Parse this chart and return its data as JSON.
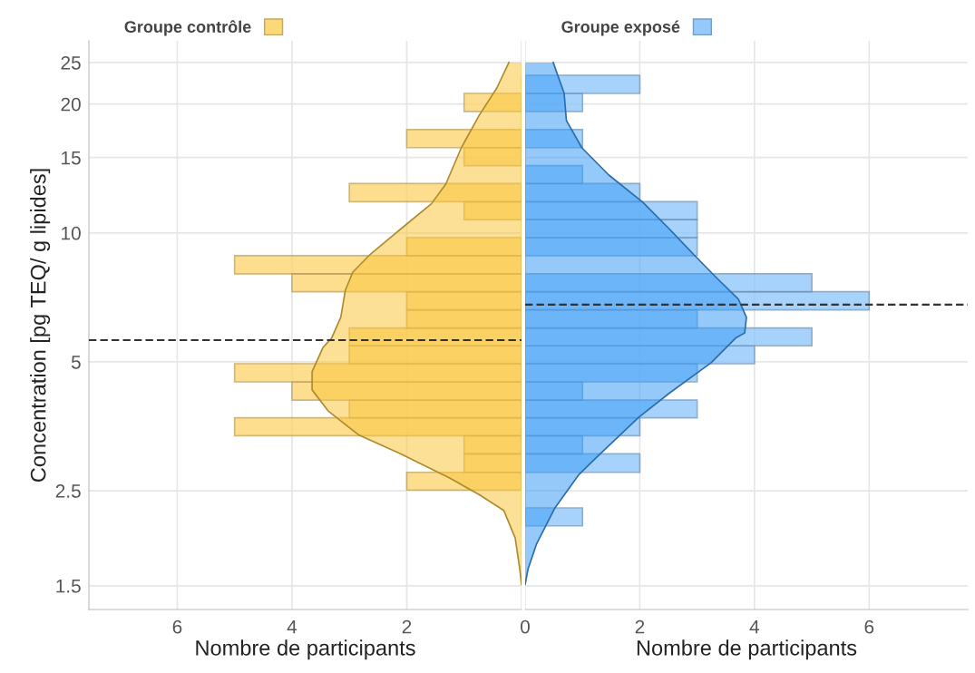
{
  "chart_data": [
    {
      "type": "histogram",
      "orientation": "horizontal",
      "log": "y",
      "ylabel": "Concentration [pg TEQ/ g lipides]",
      "xlabel": "Nombre de participants",
      "bins": [
        2.07,
        2.28,
        2.51,
        2.76,
        3.05,
        3.36,
        3.7,
        4.07,
        4.49,
        4.95,
        5.45,
        6.0,
        6.61,
        7.29,
        8.03,
        8.85,
        9.75,
        10.74,
        11.83,
        13.04,
        14.36,
        15.82,
        17.43,
        19.21,
        21.17,
        23.32
      ],
      "series": [
        {
          "name": "Groupe contrôle",
          "color": "#fdd46a",
          "values": [
            0,
            0,
            2,
            1,
            1,
            5,
            3,
            4,
            5,
            3,
            3,
            2,
            2,
            4,
            5,
            2,
            0,
            1,
            3,
            0,
            1,
            2,
            0,
            1,
            0
          ]
        },
        {
          "type": "area",
          "color": "#f9c640",
          "x": [
            1.51,
            1.64,
            1.94,
            2.25,
            2.45,
            2.68,
            3.05,
            3.37,
            3.84,
            4.3,
            4.74,
            5.4,
            5.68,
            6.35,
            7.35,
            8.1,
            8.93,
            10.2,
            11.7,
            13.0,
            15.8,
            18.8,
            21.8,
            25.0
          ],
          "values": [
            0,
            0.03,
            0.11,
            0.31,
            0.74,
            1.26,
            2.11,
            2.83,
            3.37,
            3.65,
            3.65,
            3.46,
            3.31,
            3.15,
            3.07,
            2.94,
            2.63,
            2.11,
            1.57,
            1.32,
            1.05,
            0.74,
            0.43,
            0.22
          ]
        }
      ],
      "xlim": [
        7.54,
        0
      ],
      "xticks": [
        {
          "value": 6,
          "label": "6"
        },
        {
          "value": 4,
          "label": "4"
        },
        {
          "value": 2,
          "label": "2"
        },
        {
          "value": 0,
          "label": null
        }
      ],
      "ylim": [
        1.32,
        28.1
      ],
      "yticks": [
        1.5,
        2.5,
        5,
        10,
        15,
        20,
        25
      ],
      "ref_lines": [
        {
          "axis": "y",
          "value": 5.62,
          "color": "#333333",
          "line_style": "dashed"
        }
      ],
      "grid": true,
      "legend": "top left"
    },
    {
      "type": "histogram",
      "orientation": "horizontal",
      "log": "y",
      "xlabel": "Nombre de participants",
      "bins": [
        2.07,
        2.28,
        2.51,
        2.76,
        3.05,
        3.36,
        3.7,
        4.07,
        4.49,
        4.95,
        5.45,
        6.0,
        6.61,
        7.29,
        8.03,
        8.85,
        9.75,
        10.74,
        11.83,
        13.04,
        14.36,
        15.82,
        17.43,
        19.21,
        21.17,
        23.32
      ],
      "series": [
        {
          "name": "Groupe exposé",
          "color": "#8ac4fb",
          "values": [
            1,
            0,
            0,
            2,
            1,
            2,
            3,
            1,
            3,
            4,
            5,
            3,
            6,
            5,
            0,
            3,
            3,
            3,
            2,
            1,
            0,
            1,
            0,
            1,
            2
          ]
        },
        {
          "type": "area",
          "color": "#3d9cf5",
          "x": [
            1.51,
            1.64,
            1.88,
            2.28,
            2.73,
            3.05,
            3.71,
            4.23,
            4.97,
            5.68,
            5.84,
            6.35,
            7.0,
            7.83,
            8.93,
            10.2,
            11.8,
            13.65,
            15.8,
            18.3,
            21.2,
            25.0
          ],
          "values": [
            0,
            0.05,
            0.2,
            0.52,
            0.94,
            1.31,
            1.98,
            2.52,
            3.24,
            3.67,
            3.83,
            3.86,
            3.72,
            3.35,
            2.93,
            2.52,
            2.05,
            1.46,
            0.99,
            0.72,
            0.68,
            0.49
          ]
        }
      ],
      "xlim": [
        0,
        7.72
      ],
      "xticks": [
        0,
        2,
        4,
        6
      ],
      "ylim": [
        1.32,
        28.1
      ],
      "yticks": [
        1.5,
        2.5,
        5,
        10,
        15,
        20,
        25
      ],
      "tick_labels": "x",
      "ref_lines": [
        {
          "axis": "y",
          "value": 6.8,
          "color": "#333333",
          "line_style": "dashed"
        }
      ],
      "grid": true,
      "legend": "top left"
    }
  ]
}
